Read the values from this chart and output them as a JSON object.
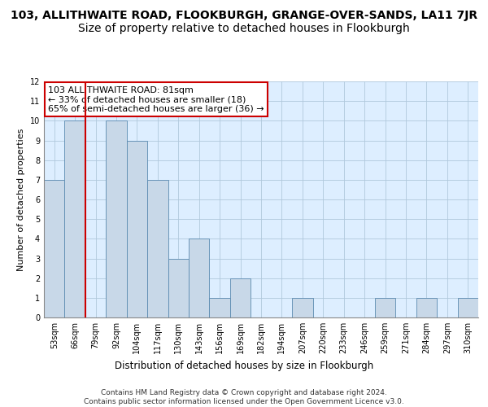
{
  "title_line1": "103, ALLITHWAITE ROAD, FLOOKBURGH, GRANGE-OVER-SANDS, LA11 7JR",
  "title_line2": "Size of property relative to detached houses in Flookburgh",
  "xlabel": "Distribution of detached houses by size in Flookburgh",
  "ylabel": "Number of detached properties",
  "categories": [
    "53sqm",
    "66sqm",
    "79sqm",
    "92sqm",
    "104sqm",
    "117sqm",
    "130sqm",
    "143sqm",
    "156sqm",
    "169sqm",
    "182sqm",
    "194sqm",
    "207sqm",
    "220sqm",
    "233sqm",
    "246sqm",
    "259sqm",
    "271sqm",
    "284sqm",
    "297sqm",
    "310sqm"
  ],
  "values": [
    7,
    10,
    0,
    10,
    9,
    7,
    3,
    4,
    1,
    2,
    0,
    0,
    1,
    0,
    0,
    0,
    1,
    0,
    1,
    0,
    1
  ],
  "bar_color": "#c8d8e8",
  "bar_edge_color": "#5a8ab0",
  "vline_x": 1.5,
  "vline_color": "#cc0000",
  "annotation_text": "103 ALLITHWAITE ROAD: 81sqm\n← 33% of detached houses are smaller (18)\n65% of semi-detached houses are larger (36) →",
  "annotation_box_color": "#ffffff",
  "annotation_box_edge": "#cc0000",
  "ylim": [
    0,
    12
  ],
  "yticks": [
    0,
    1,
    2,
    3,
    4,
    5,
    6,
    7,
    8,
    9,
    10,
    11,
    12
  ],
  "grid_color": "#b0c8dc",
  "bg_color": "#ddeeff",
  "footer": "Contains HM Land Registry data © Crown copyright and database right 2024.\nContains public sector information licensed under the Open Government Licence v3.0.",
  "title_fontsize": 10,
  "subtitle_fontsize": 10,
  "xlabel_fontsize": 8.5,
  "ylabel_fontsize": 8,
  "tick_fontsize": 7,
  "annotation_fontsize": 8,
  "footer_fontsize": 6.5
}
